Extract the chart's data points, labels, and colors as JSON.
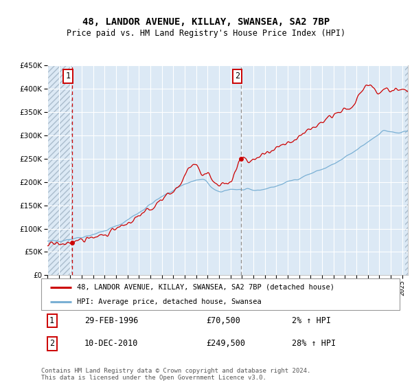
{
  "title": "48, LANDOR AVENUE, KILLAY, SWANSEA, SA2 7BP",
  "subtitle": "Price paid vs. HM Land Registry's House Price Index (HPI)",
  "sale1_label": "29-FEB-1996",
  "sale1_price": 70500,
  "sale1_hpi_pct": "2% ↑ HPI",
  "sale2_label": "10-DEC-2010",
  "sale2_price": 249500,
  "sale2_hpi_pct": "28% ↑ HPI",
  "legend_line1": "48, LANDOR AVENUE, KILLAY, SWANSEA, SA2 7BP (detached house)",
  "legend_line2": "HPI: Average price, detached house, Swansea",
  "footnote": "Contains HM Land Registry data © Crown copyright and database right 2024.\nThis data is licensed under the Open Government Licence v3.0.",
  "red_color": "#cc0000",
  "blue_color": "#7ab0d4",
  "bg_color": "#dce9f5",
  "hatch_color": "#aabccc",
  "grid_color": "#ffffff",
  "ylim": [
    0,
    450000
  ],
  "xlim_start": 1994.0,
  "xlim_end": 2025.5,
  "sale1_x": 1996.16,
  "sale2_x": 2010.94
}
